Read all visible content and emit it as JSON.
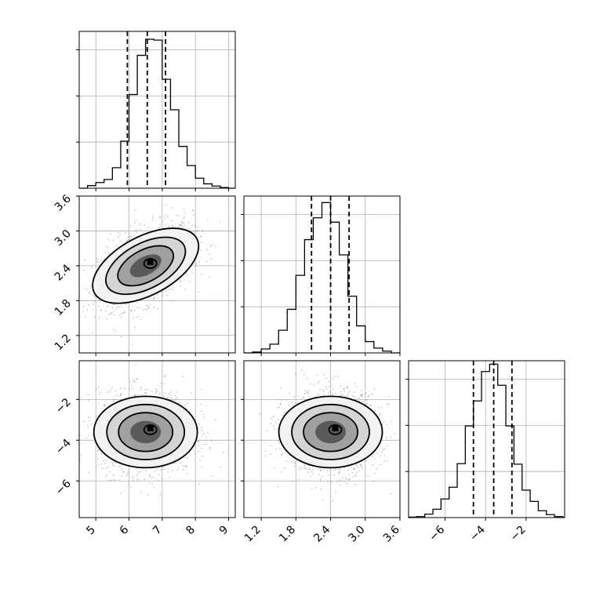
{
  "chart_data": [
    {
      "type": "histogram",
      "panel": "row1-col1",
      "param_index": 0,
      "xlim": [
        4.5,
        9.2
      ],
      "bins_start": 4.5,
      "bin_width": 0.25,
      "counts": [
        0,
        60,
        130,
        200,
        470,
        1080,
        2150,
        3050,
        3420,
        3400,
        2500,
        1800,
        960,
        520,
        230,
        100,
        50,
        15,
        0
      ],
      "quantile_lines": [
        5.95,
        6.55,
        7.1
      ],
      "ymax": 3600,
      "grid": true
    },
    {
      "type": "histogram",
      "panel": "row2-col2",
      "param_index": 1,
      "xlim": [
        0.9,
        3.6
      ],
      "bins_start": 0.9,
      "bin_width": 0.15,
      "counts": [
        0,
        20,
        90,
        200,
        520,
        1000,
        1780,
        2600,
        3100,
        3450,
        3000,
        2250,
        1300,
        620,
        260,
        110,
        40,
        0
      ],
      "quantile_lines": [
        2.07,
        2.4,
        2.72
      ],
      "ymax": 3600,
      "grid": true
    },
    {
      "type": "histogram",
      "panel": "row3-col3",
      "param_index": 2,
      "xlim": [
        -7.8,
        -0.1
      ],
      "bins_start": -7.8,
      "bin_width": 0.4,
      "counts": [
        10,
        20,
        70,
        170,
        380,
        620,
        1100,
        1870,
        2380,
        2980,
        3130,
        2700,
        1870,
        1090,
        560,
        330,
        140,
        60,
        20
      ],
      "quantile_lines": [
        -4.6,
        -3.6,
        -2.7
      ],
      "ymax": 3200,
      "grid": true
    },
    {
      "type": "scatter",
      "panel": "row2-col1",
      "x_param": 0,
      "y_param": 1,
      "center": [
        6.5,
        2.4
      ],
      "xlim": [
        4.5,
        9.2
      ],
      "ylim": [
        0.9,
        3.6
      ],
      "grid": true
    },
    {
      "type": "scatter",
      "panel": "row3-col1",
      "x_param": 0,
      "y_param": 2,
      "center": [
        6.5,
        -3.6
      ],
      "xlim": [
        4.5,
        9.2
      ],
      "ylim": [
        -7.8,
        -0.1
      ],
      "grid": true
    },
    {
      "type": "scatter",
      "panel": "row3-col2",
      "x_param": 1,
      "y_param": 2,
      "center": [
        2.4,
        -3.6
      ],
      "xlim": [
        0.9,
        3.6
      ],
      "ylim": [
        -7.8,
        -0.1
      ],
      "grid": true
    }
  ],
  "axes": {
    "p0": {
      "ticks": [
        "5",
        "6",
        "7",
        "8",
        "9"
      ],
      "tick_values": [
        5,
        6,
        7,
        8,
        9
      ]
    },
    "p1": {
      "ticks": [
        "1.2",
        "1.8",
        "2.4",
        "3.0",
        "3.6"
      ],
      "tick_values": [
        1.2,
        1.8,
        2.4,
        3.0,
        3.6
      ]
    },
    "p2": {
      "ticks": [
        "−6",
        "−4",
        "−2"
      ],
      "tick_values": [
        -6,
        -4,
        -2
      ]
    }
  }
}
